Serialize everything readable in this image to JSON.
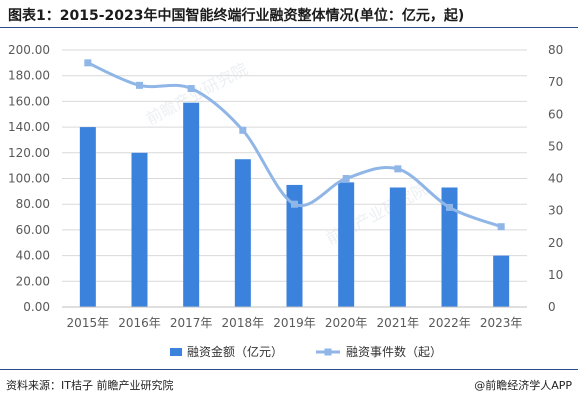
{
  "title": "图表1：2015-2023年中国智能终端行业融资整体情况(单位：亿元，起)",
  "source": "资料来源：IT桔子 前瞻产业研究院",
  "brand": "@前瞻经济学人APP",
  "watermark": {
    "text_1": "前瞻产业研究院",
    "text_2": "前瞻产业研究院"
  },
  "colors": {
    "bar": "#3b82dc",
    "line": "#8fb6e6",
    "grid": "#d9d9d9",
    "axis_text": "#595959",
    "title_rule": "#2b4c8c"
  },
  "chart_data": {
    "type": "bar",
    "categories": [
      "2015年",
      "2016年",
      "2017年",
      "2018年",
      "2019年",
      "2020年",
      "2021年",
      "2022年",
      "2023年"
    ],
    "series": [
      {
        "name": "融资金额（亿元）",
        "type": "bar",
        "axis": "left",
        "values": [
          140,
          120,
          159,
          115,
          95,
          97,
          93,
          93,
          40
        ]
      },
      {
        "name": "融资事件数（起）",
        "type": "line",
        "axis": "right",
        "smooth": true,
        "values": [
          76,
          69,
          68,
          55,
          32,
          40,
          43,
          31,
          25
        ]
      }
    ],
    "y_left": {
      "ylim": [
        0,
        200
      ],
      "ticks": [
        "0.00",
        "20.00",
        "40.00",
        "60.00",
        "80.00",
        "100.00",
        "120.00",
        "140.00",
        "160.00",
        "180.00",
        "200.00"
      ]
    },
    "y_right": {
      "ylim": [
        0,
        80
      ],
      "ticks": [
        "0",
        "10",
        "20",
        "30",
        "40",
        "50",
        "60",
        "70",
        "80"
      ]
    },
    "grid": true,
    "legend_position": "bottom"
  }
}
